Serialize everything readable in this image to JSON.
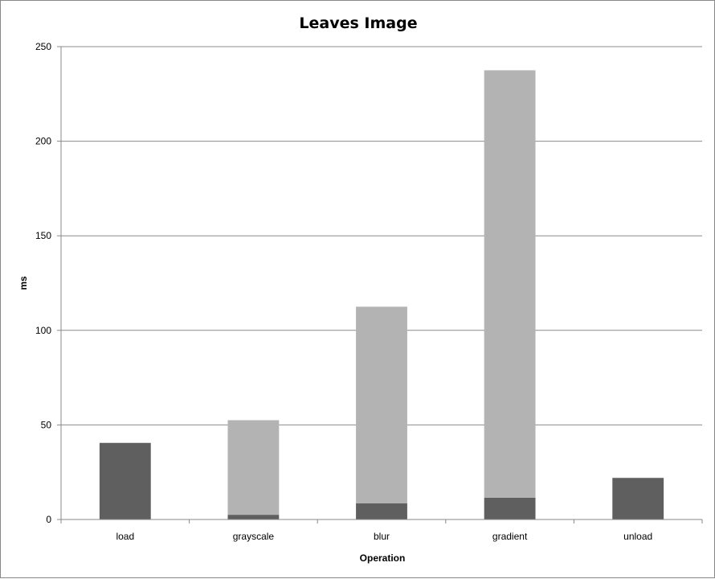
{
  "chart_data": {
    "type": "bar",
    "stacked": true,
    "title": "Leaves Image",
    "xlabel": "Operation",
    "ylabel": "ms",
    "ylim": [
      0,
      250
    ],
    "yticks": [
      0,
      50,
      100,
      150,
      200,
      250
    ],
    "grid": true,
    "legend": "none",
    "categories": [
      "load",
      "grayscale",
      "blur",
      "gradient",
      "unload"
    ],
    "series": [
      {
        "values": [
          40.5,
          2.5,
          8.5,
          11.5,
          22
        ],
        "color": "#5f5f5f"
      },
      {
        "values": [
          0,
          50,
          104,
          226,
          0
        ],
        "color": "#b3b3b3"
      }
    ]
  }
}
